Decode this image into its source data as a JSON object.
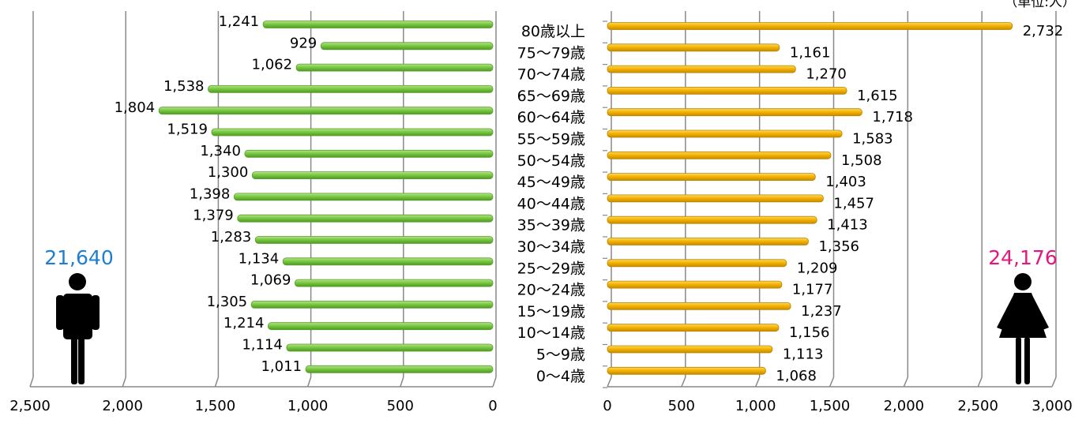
{
  "unit_label": "（単位:人）",
  "chart_data": [
    {
      "type": "bar",
      "orientation": "horizontal",
      "direction": "right-to-left",
      "series": [
        {
          "name": "",
          "color": "#7ac943",
          "values": [
            1241,
            929,
            1062,
            1538,
            1804,
            1519,
            1340,
            1300,
            1398,
            1379,
            1283,
            1134,
            1069,
            1305,
            1214,
            1114,
            1011
          ]
        }
      ],
      "total": "21,640",
      "total_color": "#1e7fd2",
      "icon": "male-person-icon",
      "xlim": [
        0,
        2500
      ],
      "x_ticks": [
        "2,500",
        "2,000",
        "1,500",
        "1,000",
        "500",
        "0"
      ],
      "grid": true
    },
    {
      "type": "bar",
      "orientation": "horizontal",
      "direction": "left-to-right",
      "series": [
        {
          "name": "",
          "color": "#f4b400",
          "values": [
            2732,
            1161,
            1270,
            1615,
            1718,
            1583,
            1508,
            1403,
            1457,
            1413,
            1356,
            1209,
            1177,
            1237,
            1156,
            1113,
            1068
          ]
        }
      ],
      "total": "24,176",
      "total_color": "#e6167e",
      "icon": "female-person-icon",
      "xlim": [
        0,
        3000
      ],
      "x_ticks": [
        "0",
        "500",
        "1,000",
        "1,500",
        "2,000",
        "2,500",
        "3,000"
      ],
      "grid": true
    }
  ],
  "categories": [
    "80歳以上",
    "75〜79歳",
    "70〜74歳",
    "65〜69歳",
    "60〜64歳",
    "55〜59歳",
    "50〜54歳",
    "45〜49歳",
    "40〜44歳",
    "35〜39歳",
    "30〜34歳",
    "25〜29歳",
    "20〜24歳",
    "15〜19歳",
    "10〜14歳",
    "5〜9歳",
    "0〜4歳"
  ]
}
